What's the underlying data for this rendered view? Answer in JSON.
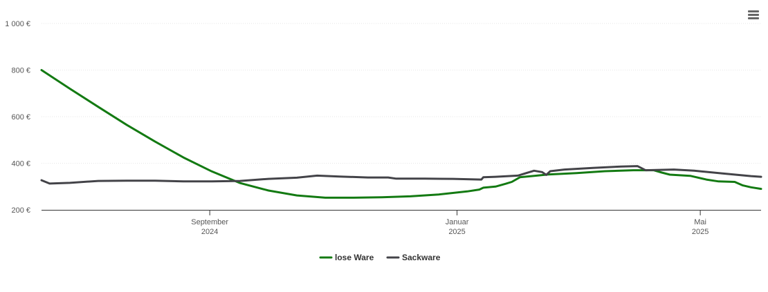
{
  "chart_data": {
    "type": "line",
    "y_unit_suffix": " €",
    "ylim": [
      200,
      1000
    ],
    "y_ticks": [
      {
        "value": 200,
        "label": "200 €"
      },
      {
        "value": 400,
        "label": "400 €"
      },
      {
        "value": 600,
        "label": "600 €"
      },
      {
        "value": 800,
        "label": "800 €"
      },
      {
        "value": 1000,
        "label": "1 000 €"
      }
    ],
    "xlim": [
      "2024-06-10",
      "2025-05-31"
    ],
    "x_ticks": [
      {
        "date": "2024-09-01",
        "line1": "September",
        "line2": "2024"
      },
      {
        "date": "2025-01-01",
        "line1": "Januar",
        "line2": "2025"
      },
      {
        "date": "2025-05-01",
        "line1": "Mai",
        "line2": "2025"
      }
    ],
    "grid": true,
    "legend_position": "bottom-center",
    "series": [
      {
        "name": "lose Ware",
        "color": "#137a12",
        "points": [
          [
            "2024-06-10",
            800
          ],
          [
            "2024-06-24",
            720
          ],
          [
            "2024-07-08",
            642
          ],
          [
            "2024-07-22",
            565
          ],
          [
            "2024-08-05",
            493
          ],
          [
            "2024-08-19",
            425
          ],
          [
            "2024-09-02",
            365
          ],
          [
            "2024-09-16",
            315
          ],
          [
            "2024-09-30",
            283
          ],
          [
            "2024-10-14",
            262
          ],
          [
            "2024-10-28",
            252
          ],
          [
            "2024-11-11",
            252
          ],
          [
            "2024-11-25",
            254
          ],
          [
            "2024-12-09",
            258
          ],
          [
            "2024-12-23",
            266
          ],
          [
            "2025-01-06",
            279
          ],
          [
            "2025-01-12",
            287
          ],
          [
            "2025-01-14",
            295
          ],
          [
            "2025-01-20",
            300
          ],
          [
            "2025-01-25",
            312
          ],
          [
            "2025-01-28",
            320
          ],
          [
            "2025-02-01",
            340
          ],
          [
            "2025-02-15",
            352
          ],
          [
            "2025-03-01",
            358
          ],
          [
            "2025-03-15",
            366
          ],
          [
            "2025-03-29",
            370
          ],
          [
            "2025-04-08",
            370
          ],
          [
            "2025-04-12",
            360
          ],
          [
            "2025-04-16",
            351
          ],
          [
            "2025-04-26",
            346
          ],
          [
            "2025-05-04",
            330
          ],
          [
            "2025-05-10",
            322
          ],
          [
            "2025-05-18",
            320
          ],
          [
            "2025-05-22",
            305
          ],
          [
            "2025-05-26",
            297
          ],
          [
            "2025-05-31",
            290
          ]
        ]
      },
      {
        "name": "Sackware",
        "color": "#434348",
        "points": [
          [
            "2024-06-10",
            327
          ],
          [
            "2024-06-14",
            313
          ],
          [
            "2024-06-24",
            316
          ],
          [
            "2024-07-08",
            324
          ],
          [
            "2024-07-22",
            325
          ],
          [
            "2024-08-05",
            325
          ],
          [
            "2024-08-19",
            322
          ],
          [
            "2024-09-02",
            322
          ],
          [
            "2024-09-16",
            324
          ],
          [
            "2024-09-30",
            333
          ],
          [
            "2024-10-14",
            338
          ],
          [
            "2024-10-24",
            347
          ],
          [
            "2024-11-04",
            343
          ],
          [
            "2024-11-18",
            339
          ],
          [
            "2024-11-28",
            339
          ],
          [
            "2024-12-02",
            334
          ],
          [
            "2024-12-16",
            334
          ],
          [
            "2024-12-30",
            333
          ],
          [
            "2025-01-13",
            330
          ],
          [
            "2025-01-14",
            340
          ],
          [
            "2025-01-20",
            342
          ],
          [
            "2025-01-31",
            347
          ],
          [
            "2025-02-08",
            368
          ],
          [
            "2025-02-12",
            362
          ],
          [
            "2025-02-14",
            350
          ],
          [
            "2025-02-16",
            366
          ],
          [
            "2025-02-23",
            373
          ],
          [
            "2025-03-09",
            380
          ],
          [
            "2025-03-23",
            386
          ],
          [
            "2025-03-31",
            388
          ],
          [
            "2025-04-04",
            370
          ],
          [
            "2025-04-18",
            373
          ],
          [
            "2025-04-28",
            368
          ],
          [
            "2025-05-12",
            356
          ],
          [
            "2025-05-26",
            345
          ],
          [
            "2025-05-31",
            342
          ]
        ]
      }
    ]
  },
  "menu": {
    "icon": "hamburger-menu-icon"
  }
}
